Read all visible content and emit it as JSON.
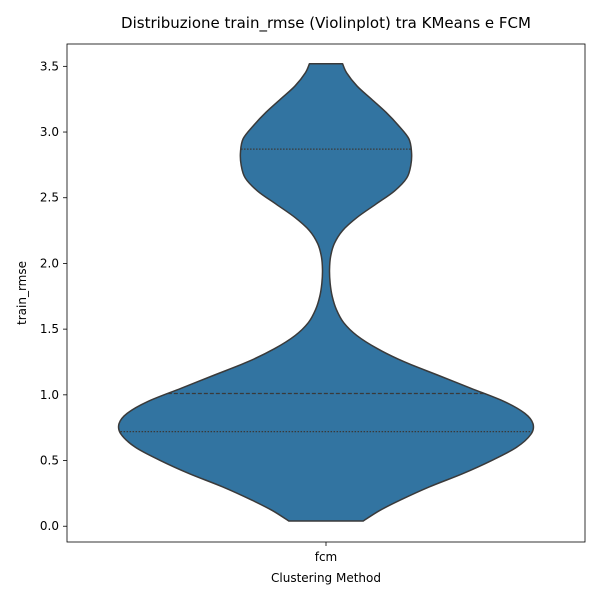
{
  "chart_data": {
    "type": "violin",
    "title": "Distribuzione train_rmse (Violinplot) tra KMeans e FCM",
    "xlabel": "Clustering Method",
    "ylabel": "train_rmse",
    "categories": [
      "fcm"
    ],
    "ylim": [
      -0.12,
      3.67
    ],
    "yticks": [
      0.0,
      0.5,
      1.0,
      1.5,
      2.0,
      2.5,
      3.0,
      3.5
    ],
    "ytick_labels": [
      "0.0",
      "0.5",
      "1.0",
      "1.5",
      "2.0",
      "2.5",
      "3.0",
      "3.5"
    ],
    "grid": false,
    "colors": {
      "violin_fill": "#3274a1",
      "violin_edge": "#3a3a3a"
    },
    "violins": [
      {
        "category": "fcm",
        "min": 0.04,
        "max": 3.52,
        "quartiles": [
          0.72,
          1.01,
          2.87
        ],
        "density_profile": [
          [
            0.04,
            0.18
          ],
          [
            0.12,
            0.26
          ],
          [
            0.2,
            0.36
          ],
          [
            0.3,
            0.5
          ],
          [
            0.4,
            0.66
          ],
          [
            0.5,
            0.8
          ],
          [
            0.6,
            0.92
          ],
          [
            0.7,
            0.99
          ],
          [
            0.78,
            1.0
          ],
          [
            0.86,
            0.96
          ],
          [
            0.95,
            0.86
          ],
          [
            1.05,
            0.7
          ],
          [
            1.15,
            0.54
          ],
          [
            1.25,
            0.38
          ],
          [
            1.35,
            0.25
          ],
          [
            1.45,
            0.15
          ],
          [
            1.55,
            0.085
          ],
          [
            1.65,
            0.05
          ],
          [
            1.75,
            0.03
          ],
          [
            1.85,
            0.02
          ],
          [
            1.95,
            0.017
          ],
          [
            2.05,
            0.022
          ],
          [
            2.15,
            0.04
          ],
          [
            2.25,
            0.08
          ],
          [
            2.35,
            0.15
          ],
          [
            2.45,
            0.24
          ],
          [
            2.55,
            0.33
          ],
          [
            2.65,
            0.39
          ],
          [
            2.75,
            0.41
          ],
          [
            2.85,
            0.413
          ],
          [
            2.95,
            0.4
          ],
          [
            3.05,
            0.35
          ],
          [
            3.15,
            0.29
          ],
          [
            3.25,
            0.22
          ],
          [
            3.35,
            0.15
          ],
          [
            3.45,
            0.1
          ],
          [
            3.52,
            0.08
          ]
        ]
      }
    ]
  }
}
